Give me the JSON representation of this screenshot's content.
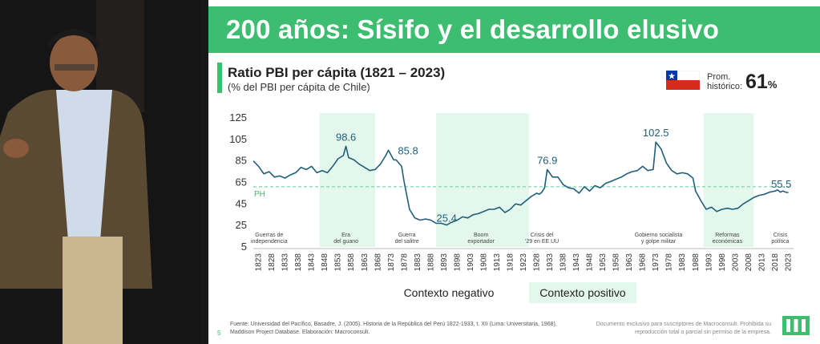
{
  "slide": {
    "title": "200 años: Sísifo y el desarrollo elusivo",
    "page_number": "5"
  },
  "chart_header": {
    "title": "Ratio PBI per cápita (1821 – 2023)",
    "subtitle": "(% del PBI per cápita de Chile)"
  },
  "average": {
    "label": "Prom. histórico:",
    "value": "61",
    "unit": "%",
    "flag_icon": "chile-flag-icon"
  },
  "legend": {
    "negative": "Contexto negativo",
    "positive": "Contexto positivo"
  },
  "source_text": "Fuente: Universidad del Pacífico, Basadre, J. (2005). Historia de la República del Perú 1822-1933, t. XII (Lima: Universitaria, 1968), Maddison Project Database. Elaboración: Macroconsult.",
  "disclaimer": "Documento exclusivo para suscriptores de Macroconsult. Prohibida su reproducción total o parcial sin permiso de la empresa.",
  "colors": {
    "brand_green": "#3dbd6f",
    "line": "#1f5f7a",
    "positive_band": "#e4f7ec",
    "reference_line": "#7fd6a8"
  },
  "chart_data": {
    "type": "line",
    "title": "Ratio PBI per cápita (1821 – 2023)",
    "ylabel": "% del PBI per cápita de Chile",
    "xlabel": "",
    "ylim": [
      5,
      125
    ],
    "xlim": [
      1821,
      2025
    ],
    "yticks": [
      125,
      105,
      85,
      65,
      45,
      25,
      5
    ],
    "xticks": [
      1823,
      1828,
      1833,
      1838,
      1843,
      1848,
      1853,
      1858,
      1863,
      1868,
      1873,
      1878,
      1883,
      1888,
      1893,
      1898,
      1903,
      1908,
      1913,
      1918,
      1923,
      1928,
      1933,
      1938,
      1943,
      1948,
      1953,
      1958,
      1963,
      1968,
      1973,
      1978,
      1983,
      1988,
      1993,
      1998,
      2003,
      2008,
      2013,
      2018,
      2023
    ],
    "reference_line": {
      "label": "PH",
      "value": 61
    },
    "series": [
      {
        "name": "Ratio PBI per cápita",
        "x": [
          1821,
          1823,
          1825,
          1827,
          1829,
          1831,
          1833,
          1835,
          1837,
          1839,
          1841,
          1843,
          1845,
          1847,
          1849,
          1851,
          1853,
          1855,
          1856,
          1857,
          1859,
          1861,
          1863,
          1865,
          1867,
          1869,
          1871,
          1872,
          1874,
          1875,
          1877,
          1878,
          1880,
          1882,
          1884,
          1886,
          1888,
          1890,
          1892,
          1894,
          1896,
          1898,
          1900,
          1902,
          1904,
          1906,
          1908,
          1910,
          1912,
          1914,
          1916,
          1918,
          1920,
          1922,
          1924,
          1926,
          1928,
          1929,
          1930,
          1931,
          1932,
          1934,
          1936,
          1938,
          1940,
          1942,
          1944,
          1946,
          1948,
          1950,
          1952,
          1954,
          1956,
          1958,
          1960,
          1962,
          1964,
          1966,
          1968,
          1970,
          1972,
          1973,
          1975,
          1977,
          1979,
          1981,
          1983,
          1985,
          1987,
          1988,
          1990,
          1992,
          1994,
          1996,
          1998,
          2000,
          2002,
          2004,
          2006,
          2008,
          2010,
          2012,
          2014,
          2016,
          2018,
          2019,
          2020,
          2021,
          2022,
          2023
        ],
        "y": [
          85,
          80,
          73,
          75,
          70,
          71,
          69,
          72,
          74,
          79,
          77,
          80,
          74,
          76,
          74,
          80,
          87,
          90,
          98.6,
          88,
          86,
          82,
          79,
          76,
          77,
          82,
          90,
          95,
          86,
          85.8,
          80,
          65,
          40,
          32,
          30,
          31,
          30,
          27,
          27,
          25.4,
          28,
          30,
          33,
          32,
          35,
          36,
          38,
          40,
          40,
          42,
          37,
          40,
          45,
          44,
          48,
          52,
          55,
          54,
          56,
          60,
          76.9,
          70,
          70,
          63,
          60,
          59,
          55,
          61,
          57,
          62,
          60,
          64,
          66,
          68,
          70,
          73,
          75,
          76,
          80,
          76,
          77,
          102.5,
          96,
          83,
          76,
          73,
          74,
          73,
          69,
          57,
          48,
          40,
          42,
          38,
          40,
          41,
          40,
          41,
          45,
          48,
          51,
          53,
          54,
          56,
          57,
          58,
          56,
          57,
          56,
          55.5
        ]
      }
    ],
    "data_labels": [
      {
        "x": 1856,
        "y": 98.6,
        "text": "98.6"
      },
      {
        "x": 1875,
        "y": 85.8,
        "text": "85.8"
      },
      {
        "x": 1894,
        "y": 25.4,
        "text": "25.4"
      },
      {
        "x": 1932,
        "y": 76.9,
        "text": "76.9"
      },
      {
        "x": 1973,
        "y": 102.5,
        "text": "102.5"
      },
      {
        "x": 2023,
        "y": 55.5,
        "text": "55.5"
      }
    ],
    "periods": [
      {
        "start": 1846,
        "end": 1867,
        "context": "positive",
        "lines": [
          "Era",
          "del guano"
        ]
      },
      {
        "start": 1890,
        "end": 1925,
        "context": "positive",
        "lines": [
          "Boom",
          "exportador"
        ]
      },
      {
        "start": 1991,
        "end": 2010,
        "context": "positive",
        "lines": [
          "Reformas",
          "económicas"
        ]
      }
    ],
    "annotations": [
      {
        "x": 1827,
        "lines": [
          "Guerras de",
          "independencia"
        ]
      },
      {
        "x": 1856,
        "lines": [
          "Era",
          "del guano"
        ]
      },
      {
        "x": 1879,
        "lines": [
          "Guerra",
          "del salitre"
        ]
      },
      {
        "x": 1907,
        "lines": [
          "Boom",
          "exportador"
        ]
      },
      {
        "x": 1930,
        "lines": [
          "Crisis del",
          "'29 en EE.UU"
        ]
      },
      {
        "x": 1974,
        "lines": [
          "Gobierno socialista",
          "y golpe militar"
        ]
      },
      {
        "x": 2000,
        "lines": [
          "Reformas",
          "económicas"
        ]
      },
      {
        "x": 2020,
        "lines": [
          "Crisis",
          "política"
        ]
      }
    ]
  }
}
